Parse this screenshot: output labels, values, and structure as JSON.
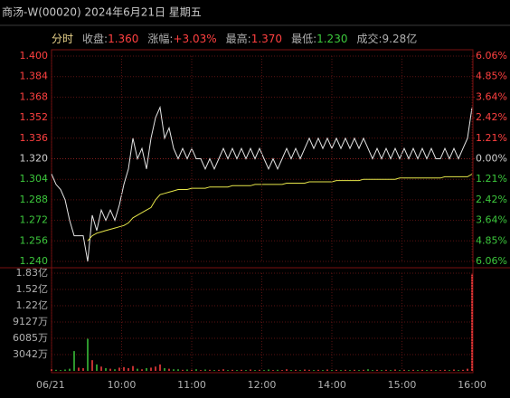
{
  "header": {
    "title": "商汤-W(00020) 2024年6月21日 星期五"
  },
  "info": [
    {
      "label": "分时",
      "color": "#e8d28a"
    },
    {
      "label": "收盘:",
      "value": "1.360",
      "color": "#ff4040"
    },
    {
      "label": "涨幅:",
      "value": "+3.03%",
      "color": "#ff4040"
    },
    {
      "label": "最高:",
      "value": "1.370",
      "color": "#ff4040"
    },
    {
      "label": "最低:",
      "value": "1.230",
      "color": "#3cc83c"
    },
    {
      "label": "成交:",
      "value": "9.28亿",
      "color": "#b0b0b0"
    }
  ],
  "chart_data": [
    {
      "type": "line",
      "ylim": [
        1.24,
        1.4
      ],
      "yticks": [
        {
          "value": 1.4,
          "label": "1.400",
          "color": "#ff4040"
        },
        {
          "value": 1.384,
          "label": "1.384",
          "color": "#ff4040"
        },
        {
          "value": 1.368,
          "label": "1.368",
          "color": "#ff4040"
        },
        {
          "value": 1.352,
          "label": "1.352",
          "color": "#ff4040"
        },
        {
          "value": 1.336,
          "label": "1.336",
          "color": "#ff4040"
        },
        {
          "value": 1.32,
          "label": "1.320",
          "color": "#d0d0d0"
        },
        {
          "value": 1.304,
          "label": "1.304",
          "color": "#3cc83c"
        },
        {
          "value": 1.288,
          "label": "1.288",
          "color": "#3cc83c"
        },
        {
          "value": 1.272,
          "label": "1.272",
          "color": "#3cc83c"
        },
        {
          "value": 1.256,
          "label": "1.256",
          "color": "#3cc83c"
        },
        {
          "value": 1.24,
          "label": "1.240",
          "color": "#3cc83c"
        }
      ],
      "y2lim": [
        -6.06,
        6.06
      ],
      "y2ticks": [
        {
          "value": 6.06,
          "label": "6.06%",
          "color": "#ff4040"
        },
        {
          "value": 4.85,
          "label": "4.85%",
          "color": "#ff4040"
        },
        {
          "value": 3.64,
          "label": "3.64%",
          "color": "#ff4040"
        },
        {
          "value": 2.42,
          "label": "2.42%",
          "color": "#ff4040"
        },
        {
          "value": 1.21,
          "label": "1.21%",
          "color": "#ff4040"
        },
        {
          "value": 0,
          "label": "0.00%",
          "color": "#d0d0d0"
        },
        {
          "value": -1.21,
          "label": "1.21%",
          "color": "#3cc83c"
        },
        {
          "value": -2.42,
          "label": "2.42%",
          "color": "#3cc83c"
        },
        {
          "value": -3.64,
          "label": "3.64%",
          "color": "#3cc83c"
        },
        {
          "value": -4.85,
          "label": "4.85%",
          "color": "#3cc83c"
        },
        {
          "value": -6.06,
          "label": "6.06%",
          "color": "#3cc83c"
        }
      ],
      "series": [
        {
          "color": "#e6e6e6",
          "values": [
            1.308,
            1.3,
            1.296,
            1.288,
            1.272,
            1.26,
            1.26,
            1.26,
            1.24,
            1.276,
            1.264,
            1.28,
            1.272,
            1.28,
            1.272,
            1.284,
            1.3,
            1.312,
            1.336,
            1.32,
            1.328,
            1.312,
            1.336,
            1.352,
            1.36,
            1.336,
            1.344,
            1.328,
            1.32,
            1.328,
            1.32,
            1.328,
            1.32,
            1.32,
            1.312,
            1.32,
            1.312,
            1.32,
            1.328,
            1.32,
            1.328,
            1.32,
            1.328,
            1.32,
            1.328,
            1.32,
            1.328,
            1.32,
            1.312,
            1.32,
            1.312,
            1.32,
            1.328,
            1.32,
            1.328,
            1.32,
            1.328,
            1.336,
            1.328,
            1.336,
            1.328,
            1.336,
            1.328,
            1.336,
            1.328,
            1.336,
            1.328,
            1.336,
            1.328,
            1.336,
            1.328,
            1.32,
            1.328,
            1.32,
            1.328,
            1.32,
            1.328,
            1.32,
            1.328,
            1.32,
            1.328,
            1.32,
            1.328,
            1.32,
            1.328,
            1.32,
            1.32,
            1.328,
            1.32,
            1.328,
            1.32,
            1.328,
            1.336,
            1.36
          ]
        },
        {
          "color": "#e6e64a",
          "values": [
            null,
            null,
            null,
            null,
            null,
            null,
            null,
            null,
            1.256,
            1.26,
            1.262,
            1.263,
            1.264,
            1.265,
            1.266,
            1.267,
            1.268,
            1.27,
            1.274,
            1.276,
            1.278,
            1.28,
            1.282,
            1.288,
            1.292,
            1.293,
            1.294,
            1.295,
            1.296,
            1.296,
            1.296,
            1.297,
            1.297,
            1.297,
            1.297,
            1.298,
            1.298,
            1.298,
            1.298,
            1.298,
            1.299,
            1.299,
            1.299,
            1.299,
            1.299,
            1.3,
            1.3,
            1.3,
            1.3,
            1.3,
            1.3,
            1.3,
            1.301,
            1.301,
            1.301,
            1.301,
            1.301,
            1.302,
            1.302,
            1.302,
            1.302,
            1.302,
            1.302,
            1.303,
            1.303,
            1.303,
            1.303,
            1.303,
            1.303,
            1.304,
            1.304,
            1.304,
            1.304,
            1.304,
            1.304,
            1.304,
            1.304,
            1.305,
            1.305,
            1.305,
            1.305,
            1.305,
            1.305,
            1.305,
            1.305,
            1.305,
            1.305,
            1.306,
            1.306,
            1.306,
            1.306,
            1.306,
            1.306,
            1.308
          ]
        }
      ]
    },
    {
      "type": "bar",
      "ylim": [
        0,
        18254
      ],
      "yticks": [
        {
          "value": 18254,
          "label": "1.83亿"
        },
        {
          "value": 15212,
          "label": "1.52亿"
        },
        {
          "value": 12169,
          "label": "1.22亿"
        },
        {
          "value": 9127,
          "label": "9127万"
        },
        {
          "value": 6085,
          "label": "6085万"
        },
        {
          "value": 3042,
          "label": "3042万"
        }
      ],
      "up_color": "#ff4040",
      "down_color": "#3cc83c",
      "values": [
        300,
        200,
        150,
        250,
        400,
        3700,
        600,
        500,
        6000,
        2000,
        1200,
        800,
        500,
        400,
        300,
        600,
        700,
        500,
        900,
        400,
        300,
        500,
        600,
        800,
        1200,
        500,
        400,
        300,
        300,
        200,
        250,
        200,
        300,
        150,
        250,
        200,
        150,
        200,
        300,
        150,
        200,
        150,
        200,
        150,
        250,
        150,
        200,
        150,
        250,
        150,
        200,
        150,
        300,
        150,
        200,
        150,
        250,
        200,
        150,
        200,
        150,
        250,
        150,
        200,
        150,
        200,
        150,
        200,
        150,
        200,
        300,
        150,
        200,
        150,
        200,
        150,
        250,
        150,
        200,
        150,
        200,
        150,
        200,
        150,
        200,
        150,
        150,
        200,
        150,
        250,
        150,
        200,
        400,
        18000
      ],
      "time_labels": [
        "06/21",
        "10:00",
        "11:00",
        "12:00",
        "14:00",
        "15:00",
        "16:00"
      ]
    }
  ]
}
